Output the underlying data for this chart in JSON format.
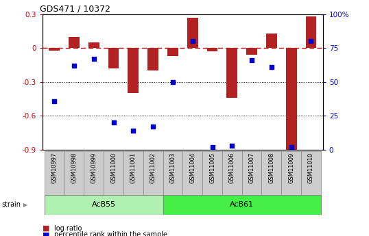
{
  "title": "GDS471 / 10372",
  "samples": [
    "GSM10997",
    "GSM10998",
    "GSM10999",
    "GSM11000",
    "GSM11001",
    "GSM11002",
    "GSM11003",
    "GSM11004",
    "GSM11005",
    "GSM11006",
    "GSM11007",
    "GSM11008",
    "GSM11009",
    "GSM11010"
  ],
  "log_ratio": [
    -0.02,
    0.1,
    0.05,
    -0.18,
    -0.4,
    -0.2,
    -0.07,
    0.27,
    -0.03,
    -0.44,
    -0.06,
    0.13,
    -0.91,
    0.28
  ],
  "percentile_rank": [
    36,
    62,
    67,
    20,
    14,
    17,
    50,
    80,
    2,
    3,
    66,
    61,
    2,
    80
  ],
  "acb55_count": 6,
  "acb61_count": 8,
  "bar_color": "#b22222",
  "dot_color": "#0000cc",
  "dashed_line_color": "#cc0000",
  "bg_color": "#ffffff",
  "ylim_left": [
    -0.9,
    0.3
  ],
  "ylim_right": [
    0,
    100
  ],
  "yticks_left": [
    -0.9,
    -0.6,
    -0.3,
    0.0,
    0.3
  ],
  "yticks_right": [
    0,
    25,
    50,
    75,
    100
  ],
  "acb55_color": "#b0f0b0",
  "acb61_color": "#44ee44",
  "tick_color_left": "#cc0000",
  "tick_color_right": "#0000cc"
}
